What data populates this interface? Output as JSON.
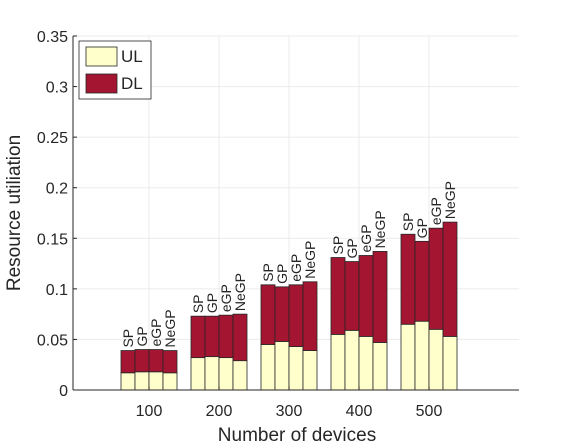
{
  "chart_data": {
    "type": "bar",
    "stacked": true,
    "grid": true,
    "legend_position": "top-left",
    "xlabel": "Number of devices",
    "ylabel": "Resource utiliation",
    "ylim": [
      0,
      0.35
    ],
    "yticks": [
      0,
      0.05,
      0.1,
      0.15,
      0.2,
      0.25,
      0.3,
      0.35
    ],
    "ytick_labels": [
      "0",
      "0.05",
      "0.1",
      "0.15",
      "0.2",
      "0.25",
      "0.3",
      "0.35"
    ],
    "categories": [
      "100",
      "200",
      "300",
      "400",
      "500"
    ],
    "methods": [
      "SP",
      "GP",
      "eGP",
      "NeGP"
    ],
    "series": [
      {
        "name": "UL",
        "color": "#ffffcc",
        "values": [
          [
            0.017,
            0.018,
            0.018,
            0.017
          ],
          [
            0.032,
            0.033,
            0.032,
            0.029
          ],
          [
            0.045,
            0.048,
            0.043,
            0.039
          ],
          [
            0.055,
            0.059,
            0.053,
            0.047
          ],
          [
            0.065,
            0.068,
            0.06,
            0.053
          ]
        ]
      },
      {
        "name": "DL",
        "color": "#a31531",
        "values": [
          [
            0.022,
            0.022,
            0.022,
            0.022
          ],
          [
            0.041,
            0.04,
            0.042,
            0.046
          ],
          [
            0.059,
            0.054,
            0.061,
            0.068
          ],
          [
            0.076,
            0.068,
            0.08,
            0.09
          ],
          [
            0.089,
            0.079,
            0.1,
            0.113
          ]
        ]
      }
    ]
  }
}
